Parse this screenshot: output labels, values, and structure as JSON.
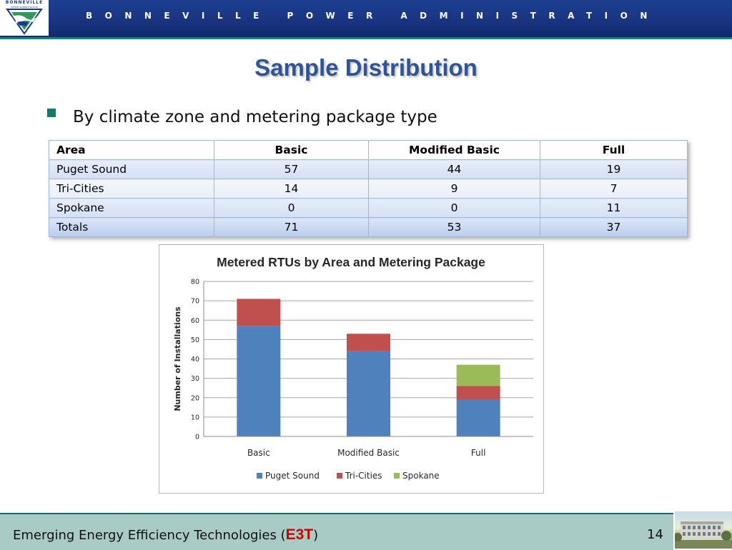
{
  "header": {
    "logo_top": "BONNEVILLE",
    "logo_sub": "POWER ADMINISTRATION",
    "org_name": "BONNEVILLE POWER ADMINISTRATION"
  },
  "slide": {
    "title": "Sample Distribution",
    "bullet": "By climate zone and metering package type"
  },
  "table": {
    "headers": [
      "Area",
      "Basic",
      "Modified Basic",
      "Full"
    ],
    "rows": [
      [
        "Puget Sound",
        "57",
        "44",
        "19"
      ],
      [
        "Tri-Cities",
        "14",
        "9",
        "7"
      ],
      [
        "Spokane",
        "0",
        "0",
        "11"
      ],
      [
        "Totals",
        "71",
        "53",
        "37"
      ]
    ]
  },
  "chart_data": {
    "type": "bar",
    "stacked": true,
    "title": "Metered RTUs by Area and Metering Package",
    "xlabel": "",
    "ylabel": "Number of Installations",
    "categories": [
      "Basic",
      "Modified Basic",
      "Full"
    ],
    "series": [
      {
        "name": "Puget Sound",
        "values": [
          57,
          44,
          19
        ],
        "color": "#4f81bd"
      },
      {
        "name": "Tri-Cities",
        "values": [
          14,
          9,
          7
        ],
        "color": "#c0504d"
      },
      {
        "name": "Spokane",
        "values": [
          0,
          0,
          11
        ],
        "color": "#9bbb59"
      }
    ],
    "ylim": [
      0,
      80
    ],
    "yticks": [
      0,
      10,
      20,
      30,
      40,
      50,
      60,
      70,
      80
    ],
    "grid": true,
    "legend": "bottom"
  },
  "footer": {
    "text": "Emerging Energy Efficiency Technologies",
    "open_paren": "(",
    "abbr": "E3T",
    "close_paren": ")",
    "page_number": "14"
  }
}
